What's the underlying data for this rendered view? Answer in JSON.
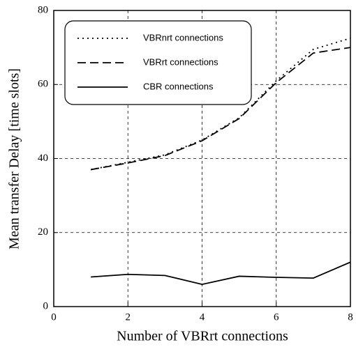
{
  "chart_data": {
    "type": "line",
    "x_label": "Number of VBRrt connections",
    "y_label": "Mean transfer Delay [time slots]",
    "x": [
      1,
      2,
      3,
      4,
      5,
      6,
      7,
      8
    ],
    "series": [
      {
        "name": "VBRnrt connections",
        "color": "#000000",
        "dash": "dotted",
        "values": [
          37,
          39,
          41,
          45,
          51,
          61,
          69.5,
          72.5
        ]
      },
      {
        "name": "VBRrt connections",
        "color": "#000000",
        "dash": "dashed",
        "values": [
          37,
          38.8,
          40.8,
          44.8,
          50.8,
          60.5,
          68.5,
          70
        ]
      },
      {
        "name": "CBR connections",
        "color": "#000000",
        "dash": "solid",
        "values": [
          8,
          8.7,
          8.4,
          6,
          8.2,
          7.9,
          7.7,
          12
        ]
      }
    ],
    "xlim": [
      0,
      8
    ],
    "xticks": [
      0,
      2,
      4,
      6,
      8
    ],
    "ylim": [
      0,
      80
    ],
    "yticks": [
      0,
      20,
      40,
      60,
      80
    ],
    "grid": true,
    "legend": "upper left"
  }
}
